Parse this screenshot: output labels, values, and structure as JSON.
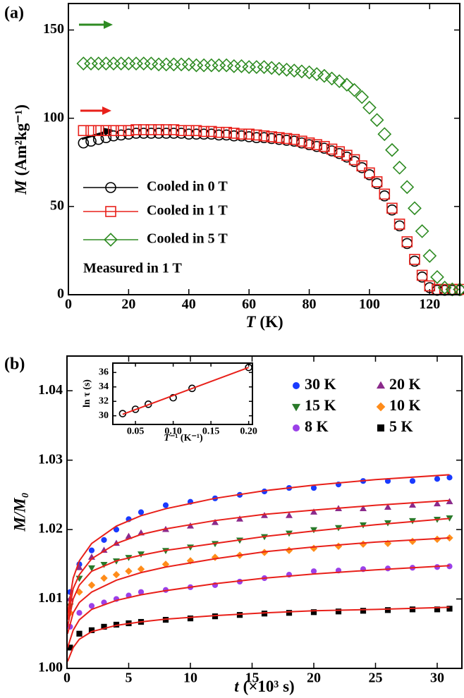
{
  "chart_data": [
    {
      "type": "scatter",
      "panel_label": "(a)",
      "xlabel": {
        "symbol": "T",
        "unit": "(K)"
      },
      "ylabel": {
        "symbol": "M",
        "unit": "(Am²kg⁻¹)"
      },
      "annotation": "Measured in 1 T",
      "xlim": [
        0,
        130
      ],
      "ylim": [
        0,
        165
      ],
      "xticks": [
        0,
        20,
        40,
        60,
        80,
        100,
        120
      ],
      "yticks": [
        0,
        50,
        100,
        150
      ],
      "filled": false,
      "x": [
        5,
        7.5,
        10,
        12.5,
        15,
        17.5,
        20,
        22.5,
        25,
        27.5,
        30,
        32.5,
        35,
        37.5,
        40,
        42.5,
        45,
        47.5,
        50,
        52.5,
        55,
        57.5,
        60,
        62.5,
        65,
        67.5,
        70,
        72.5,
        75,
        77.5,
        80,
        82.5,
        85,
        87.5,
        90,
        92.5,
        95,
        97.5,
        100,
        102.5,
        105,
        107.5,
        110,
        112.5,
        115,
        117.5,
        120,
        122.5,
        125,
        127.5,
        130
      ],
      "series": [
        {
          "name": "Cooled in 0 T",
          "color": "#000000",
          "marker": "circle",
          "values": [
            86,
            87,
            88,
            89,
            90,
            90.5,
            91,
            91.5,
            91.5,
            91.5,
            91.5,
            91.5,
            91.5,
            91.5,
            91,
            91,
            91,
            91,
            90.5,
            90.5,
            90,
            90,
            89.5,
            89,
            89,
            88.5,
            88,
            87.5,
            87,
            86,
            85,
            84,
            83,
            81.5,
            80,
            78,
            75.5,
            72,
            68,
            63,
            56,
            48,
            39,
            29,
            19,
            10,
            4,
            2.5,
            2.5,
            2.5,
            2.5
          ]
        },
        {
          "name": "Cooled in 1 T",
          "color": "#e8201a",
          "marker": "square",
          "values": [
            93,
            93,
            93,
            93,
            93,
            93,
            93,
            93.5,
            93.5,
            93.5,
            93.5,
            93.5,
            93.5,
            93,
            93,
            93,
            92.5,
            92.5,
            92,
            92,
            91.5,
            91,
            91,
            90.5,
            90,
            89.5,
            89,
            88.5,
            88,
            87,
            86,
            85,
            84,
            82.5,
            81,
            79,
            76.5,
            73,
            69,
            64,
            57,
            49,
            40,
            30,
            20,
            11,
            5,
            3,
            3,
            3,
            3
          ]
        },
        {
          "name": "Cooled in 5 T",
          "color": "#2e8b22",
          "marker": "diamond",
          "values": [
            131,
            131,
            131,
            131,
            131,
            131,
            131,
            131,
            131,
            131,
            130.5,
            130.5,
            130.5,
            130.5,
            130.5,
            130,
            130,
            130,
            130,
            130,
            129.5,
            129.5,
            129,
            129,
            129,
            128.5,
            128,
            127.5,
            127,
            126.5,
            126,
            125,
            124,
            122.5,
            121,
            119,
            116,
            112,
            106,
            99,
            91,
            82,
            72,
            61,
            49,
            36,
            22,
            10,
            4,
            3,
            3
          ]
        }
      ]
    },
    {
      "type": "scatter",
      "panel_label": "(b)",
      "xlabel": {
        "symbol": "t",
        "unit": "(×10³ s)"
      },
      "ylabel": {
        "symbol": "M/M₀"
      },
      "xlim": [
        0,
        32
      ],
      "ylim": [
        1,
        1.045
      ],
      "xticks": [
        0,
        5,
        10,
        15,
        20,
        25,
        30
      ],
      "yticks": [
        {
          "value": 1,
          "label": "1.00"
        },
        1.01,
        1.02,
        1.03,
        1.04
      ],
      "filled": true,
      "x": [
        0.25,
        1,
        2,
        3,
        4,
        5,
        6,
        8,
        10,
        12,
        14,
        16,
        18,
        20,
        22,
        24,
        26,
        28,
        30,
        31
      ],
      "series": [
        {
          "name": "30 K",
          "color": "#1a3bff",
          "marker": "circle",
          "values": [
            1.011,
            1.015,
            1.017,
            1.0185,
            1.02,
            1.0215,
            1.0225,
            1.0235,
            1.024,
            1.0245,
            1.025,
            1.0255,
            1.026,
            1.026,
            1.0265,
            1.027,
            1.027,
            1.027,
            1.0273,
            1.0275
          ]
        },
        {
          "name": "20 K",
          "color": "#8b2a8b",
          "marker": "triangle-up",
          "values": [
            1.01,
            1.0145,
            1.016,
            1.017,
            1.018,
            1.019,
            1.0195,
            1.02,
            1.0205,
            1.021,
            1.0215,
            1.022,
            1.022,
            1.0225,
            1.023,
            1.023,
            1.0232,
            1.0235,
            1.0237,
            1.024
          ]
        },
        {
          "name": "15 K",
          "color": "#2a7a2a",
          "marker": "triangle-down",
          "values": [
            1.009,
            1.013,
            1.0145,
            1.015,
            1.0155,
            1.016,
            1.0165,
            1.017,
            1.0175,
            1.018,
            1.0185,
            1.019,
            1.0195,
            1.02,
            1.0203,
            1.0207,
            1.021,
            1.0213,
            1.0215,
            1.0217
          ]
        },
        {
          "name": "10 K",
          "color": "#ff8c1a",
          "marker": "diamond",
          "values": [
            1.008,
            1.011,
            1.012,
            1.013,
            1.0135,
            1.014,
            1.0143,
            1.015,
            1.0155,
            1.016,
            1.0163,
            1.0167,
            1.017,
            1.0173,
            1.0176,
            1.0179,
            1.018,
            1.0183,
            1.0186,
            1.0188
          ]
        },
        {
          "name": "8 K",
          "color": "#9b40e8",
          "marker": "circle",
          "values": [
            1.006,
            1.008,
            1.009,
            1.0095,
            1.01,
            1.0105,
            1.011,
            1.0113,
            1.0117,
            1.012,
            1.0125,
            1.013,
            1.0135,
            1.014,
            1.0141,
            1.0143,
            1.0144,
            1.0145,
            1.0146,
            1.0147
          ]
        },
        {
          "name": "5 K",
          "color": "#000000",
          "marker": "square",
          "values": [
            1.003,
            1.005,
            1.0055,
            1.006,
            1.0063,
            1.0065,
            1.0067,
            1.007,
            1.0072,
            1.0075,
            1.0077,
            1.0079,
            1.008,
            1.0081,
            1.0082,
            1.0083,
            1.0084,
            1.0085,
            1.0085,
            1.0086
          ]
        }
      ],
      "fit_color": "#e8201a",
      "fit_x": [
        0.05,
        0.5,
        1,
        2,
        4,
        6,
        8,
        12,
        16,
        20,
        25,
        31
      ],
      "fits": [
        {
          "values": [
            1.008,
            1.013,
            1.0155,
            1.018,
            1.0205,
            1.022,
            1.023,
            1.0245,
            1.0256,
            1.0264,
            1.0272,
            1.0279
          ]
        },
        {
          "values": [
            1.007,
            1.0115,
            1.0135,
            1.0158,
            1.018,
            1.0193,
            1.0201,
            1.0213,
            1.0222,
            1.0228,
            1.0235,
            1.0242
          ]
        },
        {
          "values": [
            1.006,
            1.01,
            1.012,
            1.014,
            1.0155,
            1.0163,
            1.017,
            1.018,
            1.019,
            1.0198,
            1.0207,
            1.0216
          ]
        },
        {
          "values": [
            1.005,
            1.008,
            1.0095,
            1.011,
            1.0127,
            1.0138,
            1.0146,
            1.0158,
            1.0168,
            1.0175,
            1.0182,
            1.0188
          ]
        },
        {
          "values": [
            1.003,
            1.0055,
            1.007,
            1.0085,
            1.0098,
            1.0106,
            1.0112,
            1.0122,
            1.013,
            1.0136,
            1.0142,
            1.0148
          ]
        },
        {
          "values": [
            1.001,
            1.003,
            1.0042,
            1.0053,
            1.0062,
            1.0067,
            1.0071,
            1.0076,
            1.008,
            1.0083,
            1.0085,
            1.0088
          ]
        }
      ]
    },
    {
      "type": "scatter",
      "xlabel": {
        "symbol": "T",
        "unit": "⁻¹ (K⁻¹)"
      },
      "ylabel": {
        "symbol": "ln τ (s)"
      },
      "xlim": [
        0.02,
        0.205
      ],
      "ylim": [
        28.8,
        37.3
      ],
      "xticks": [
        0.05,
        {
          "value": 0.1,
          "label": "0.10"
        },
        0.15,
        {
          "value": 0.2,
          "label": "0.20"
        }
      ],
      "yticks": [
        30,
        32,
        34,
        36
      ],
      "filled": false,
      "x": [
        0.033,
        0.05,
        0.067,
        0.1,
        0.125,
        0.2
      ],
      "series": [
        {
          "color": "#000000",
          "marker": "circle",
          "values": [
            30.3,
            30.9,
            31.6,
            32.5,
            33.8,
            36.7
          ]
        }
      ],
      "fit_color": "#e8201a",
      "fit_x": [
        0.033,
        0.2
      ],
      "fits": [
        {
          "values": [
            30.2,
            36.7
          ]
        }
      ]
    }
  ]
}
